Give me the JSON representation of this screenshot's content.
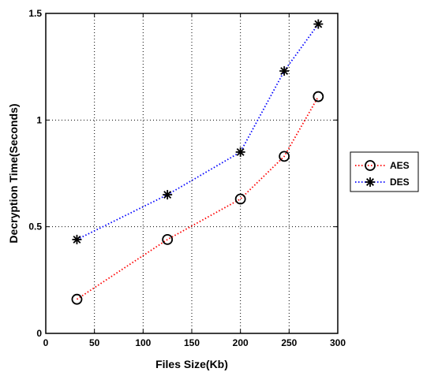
{
  "chart_data": {
    "type": "line",
    "xlabel": "Files Size(Kb)",
    "ylabel": "Decryption Time(Seconds)",
    "xlim": [
      0,
      300
    ],
    "ylim": [
      0,
      1.5
    ],
    "xticks": [
      "0",
      "50",
      "100",
      "150",
      "200",
      "250",
      "300"
    ],
    "yticks": [
      "0",
      "0.5",
      "1",
      "1.5"
    ],
    "grid": true,
    "legend_position": "right",
    "series": [
      {
        "name": "AES",
        "marker": "circle",
        "line_style": "dotted",
        "color": "#ff0000",
        "x": [
          32,
          125,
          200,
          245,
          280
        ],
        "y": [
          0.16,
          0.44,
          0.63,
          0.83,
          1.11
        ]
      },
      {
        "name": "DES",
        "marker": "star",
        "line_style": "dotted",
        "color": "#0000ff",
        "x": [
          32,
          125,
          200,
          245,
          280
        ],
        "y": [
          0.44,
          0.65,
          0.85,
          1.23,
          1.45
        ]
      }
    ]
  }
}
